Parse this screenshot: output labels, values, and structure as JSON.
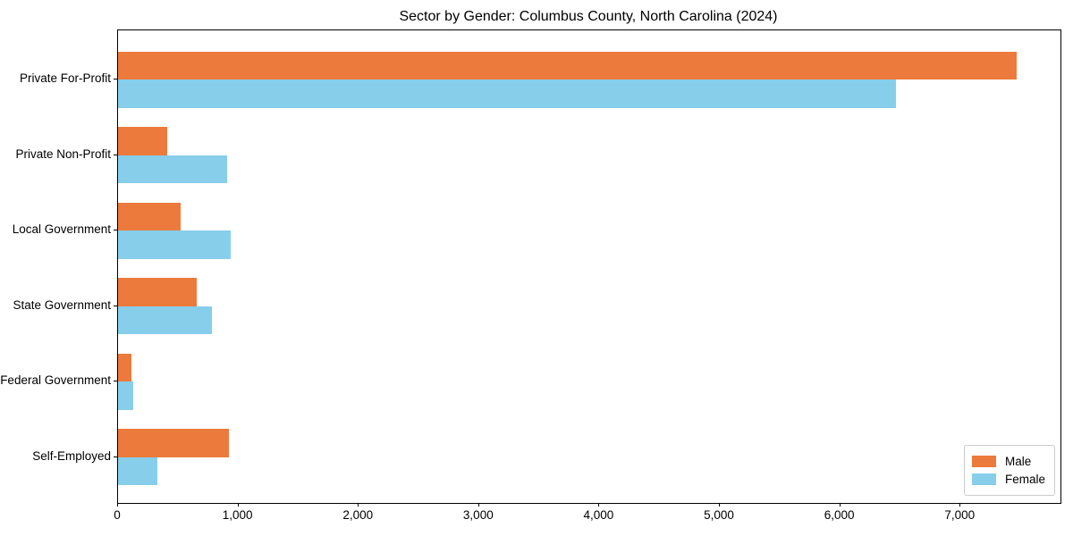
{
  "chart_data": {
    "type": "bar",
    "orientation": "horizontal",
    "title": "Sector by Gender: Columbus County, North Carolina (2024)",
    "categories": [
      "Private For-Profit",
      "Private Non-Profit",
      "Local Government",
      "State Government",
      "Federal Government",
      "Self-Employed"
    ],
    "series": [
      {
        "name": "Male",
        "color": "#ec7a3c",
        "values": [
          7465,
          405,
          520,
          655,
          110,
          920
        ]
      },
      {
        "name": "Female",
        "color": "#87ceeb",
        "values": [
          6460,
          910,
          935,
          780,
          125,
          330
        ]
      }
    ],
    "xlabel": "",
    "ylabel": "",
    "xlim": [
      0,
      7830
    ],
    "xticks": [
      0,
      1000,
      2000,
      3000,
      4000,
      5000,
      6000,
      7000
    ],
    "grid": false,
    "legend_position": "lower right"
  }
}
